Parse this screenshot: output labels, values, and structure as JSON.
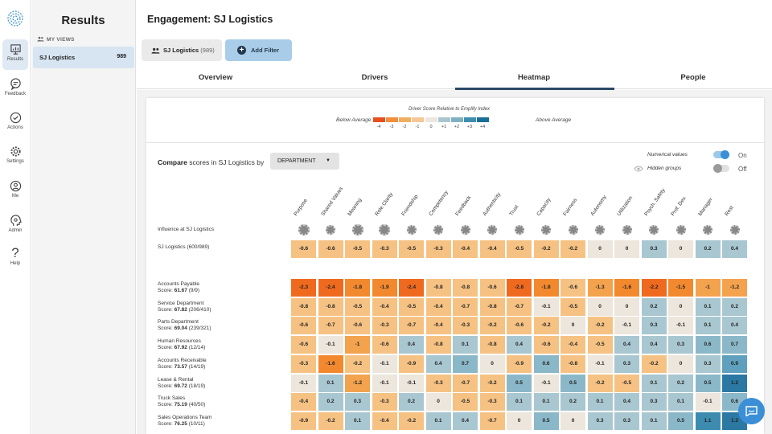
{
  "rail": {
    "items": [
      {
        "label": "Results",
        "icon": "presentation-chart-icon"
      },
      {
        "label": "Feedback",
        "icon": "feedback-bubble-icon"
      },
      {
        "label": "Actions",
        "icon": "check-circle-icon"
      },
      {
        "label": "Settings",
        "icon": "gear-icon"
      },
      {
        "label": "Me",
        "icon": "user-icon"
      },
      {
        "label": "Admin",
        "icon": "admin-head-icon"
      },
      {
        "label": "Help",
        "icon": "question-icon",
        "glyph": "?"
      }
    ]
  },
  "sidebar": {
    "title": "Results",
    "section": "MY VIEWS",
    "views": [
      {
        "name": "SJ Logistics",
        "count": "989"
      }
    ]
  },
  "header": {
    "title": "Engagement:  SJ Logistics",
    "chip_name": "SJ Logistics",
    "chip_count": "(989)",
    "add_filter": "Add Filter"
  },
  "tabs": [
    "Overview",
    "Drivers",
    "Heatmap",
    "People"
  ],
  "legend": {
    "title": "Driver Score Relative to Emplify Index",
    "below": "Below Average",
    "above": "Above Average",
    "nums": [
      "-4",
      "-3",
      "-2",
      "-1",
      "0",
      "+1",
      "+2",
      "+3",
      "+4"
    ],
    "colors": [
      "#e84f1f",
      "#f08f3c",
      "#f3ad61",
      "#f5c796",
      "#ece7de",
      "#a9c6cf",
      "#7fb0c2",
      "#3f8db0",
      "#1a6e99"
    ]
  },
  "controls": {
    "compare_bold": "Compare",
    "compare_text": " scores in SJ Logistics by",
    "dimension": "DEPARTMENT",
    "numerical_label": "Numerical values",
    "numerical_state": "On",
    "hidden_label": "Hidden groups",
    "hidden_state": "Off"
  },
  "columns": [
    "Purpose",
    "Shared Values",
    "Meaning",
    "Role Clarity",
    "Friendship",
    "Competency",
    "Feedback",
    "Authenticity",
    "Trust",
    "Capacity",
    "Fairness",
    "Autonomy",
    "Utilization",
    "Psych. Safety",
    "Prof. Dev.",
    "Manager",
    "Rest"
  ],
  "influence": {
    "label": "Influence at SJ Logistics",
    "levels": [
      3,
      2,
      3,
      3,
      2,
      2,
      2,
      2,
      2,
      2,
      2,
      2,
      2,
      2,
      2,
      2,
      2
    ]
  },
  "overall": {
    "label": "SJ Logistics (600/989)",
    "values": [
      "-0.6",
      "-0.6",
      "-0.5",
      "-0.3",
      "-0.5",
      "-0.3",
      "-0.4",
      "-0.4",
      "-0.5",
      "-0.2",
      "-0.2",
      "0",
      "0",
      "0.3",
      "0",
      "0.2",
      "0.4"
    ]
  },
  "rows": [
    {
      "name": "Accounts Payable",
      "score_label": "Score:",
      "score": "61.67",
      "count": "(9/9)",
      "values": [
        "-2.3",
        "-2.4",
        "-1.8",
        "-1.9",
        "-2.4",
        "-0.8",
        "-0.8",
        "-0.6",
        "-2.8",
        "-1.8",
        "-0.6",
        "-1.3",
        "-1.6",
        "-2.2",
        "-1.5",
        "-1",
        "-1.2"
      ]
    },
    {
      "name": "Service Department",
      "score_label": "Score:",
      "score": "67.82",
      "count": "(206/410)",
      "values": [
        "-0.8",
        "-0.8",
        "-0.5",
        "-0.4",
        "-0.5",
        "-0.4",
        "-0.7",
        "-0.8",
        "-0.7",
        "-0.1",
        "-0.5",
        "0",
        "0",
        "0.2",
        "0",
        "0.1",
        "0.2"
      ]
    },
    {
      "name": "Parts Department",
      "score_label": "Score:",
      "score": "69.04",
      "count": "(239/321)",
      "values": [
        "-0.6",
        "-0.7",
        "-0.6",
        "-0.3",
        "-0.7",
        "-0.4",
        "-0.3",
        "-0.2",
        "-0.6",
        "-0.2",
        "0",
        "-0.2",
        "-0.1",
        "0.3",
        "-0.1",
        "0.1",
        "0.4"
      ]
    },
    {
      "name": "Human Resources",
      "score_label": "Score:",
      "score": "67.92",
      "count": "(12/14)",
      "values": [
        "-0.6",
        "-0.1",
        "-1",
        "-0.6",
        "0.4",
        "-0.8",
        "0.1",
        "-0.8",
        "0.4",
        "-0.6",
        "-0.4",
        "-0.5",
        "0.4",
        "0.4",
        "0.3",
        "0.6",
        "0.7"
      ]
    },
    {
      "name": "Accounts Receivable",
      "score_label": "Score:",
      "score": "73.57",
      "count": "(14/19)",
      "values": [
        "-0.3",
        "-1.6",
        "-0.2",
        "-0.1",
        "-0.9",
        "0.4",
        "0.7",
        "0",
        "-0.9",
        "0.6",
        "-0.8",
        "-0.1",
        "0.3",
        "-0.2",
        "0",
        "0.3",
        "0.9"
      ]
    },
    {
      "name": "Lease & Rental",
      "score_label": "Score:",
      "score": "69.72",
      "count": "(18/19)",
      "values": [
        "-0.1",
        "0.1",
        "-1.2",
        "-0.1",
        "-0.1",
        "-0.3",
        "-0.7",
        "-0.2",
        "0.5",
        "-0.1",
        "0.5",
        "-0.2",
        "-0.5",
        "0.1",
        "0.2",
        "0.5",
        "1.2"
      ]
    },
    {
      "name": "Truck Sales",
      "score_label": "Score:",
      "score": "75.19",
      "count": "(40/50)",
      "values": [
        "-0.4",
        "0.2",
        "0.3",
        "-0.3",
        "0.2",
        "0",
        "-0.5",
        "-0.3",
        "0.1",
        "0.1",
        "0.2",
        "0.1",
        "0.4",
        "0.3",
        "0.1",
        "-0.1",
        "0.6"
      ]
    },
    {
      "name": "Sales Operations Team",
      "score_label": "Score:",
      "score": "76.25",
      "count": "(10/11)",
      "values": [
        "-0.9",
        "-0.2",
        "0.1",
        "-0.4",
        "-0.2",
        "0.1",
        "0.4",
        "-0.7",
        "0",
        "0.5",
        "0",
        "0.3",
        "0.3",
        "0.1",
        "0.5",
        "1.1",
        "1.3"
      ]
    }
  ]
}
